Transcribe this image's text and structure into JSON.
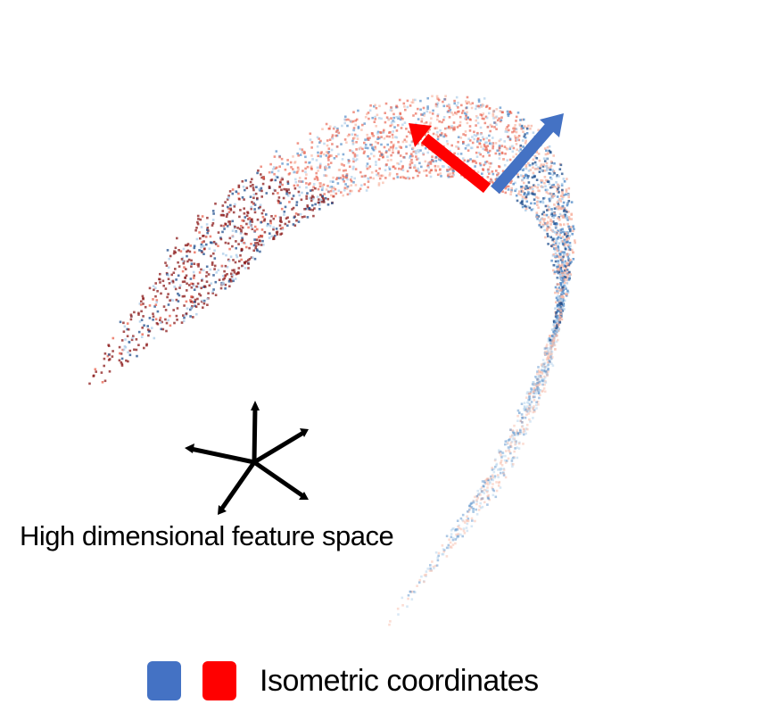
{
  "feature_space_label": "High dimensional feature space",
  "legend": {
    "label": "Isometric coordinates",
    "swatches": [
      {
        "name": "blue",
        "color": "#4472c4"
      },
      {
        "name": "red",
        "color": "#ff0000"
      }
    ]
  },
  "colors": {
    "arrow_red": "#ff0000",
    "arrow_blue": "#4472c4",
    "axes": "#000000",
    "points_dark_red": "#8b1a1a",
    "points_red": "#e8604c",
    "points_light_red": "#f7b3a0",
    "points_dark_blue": "#1f4e8c",
    "points_blue": "#4a86c5",
    "points_light_blue": "#a9cbe8"
  }
}
